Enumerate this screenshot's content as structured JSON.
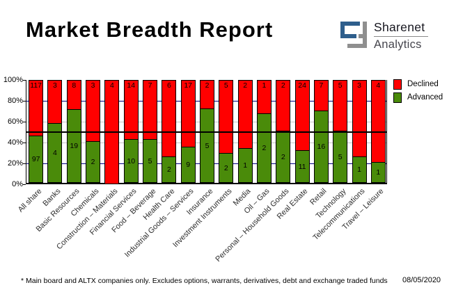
{
  "title": "Market Breadth Report",
  "logo": {
    "name": "Sharenet",
    "sub": "Analytics",
    "blue": "#2e5e8c",
    "gray": "#8f8f8f"
  },
  "legend": {
    "declined_label": "Declined",
    "advanced_label": "Advanced",
    "declined_color": "#ff0000",
    "advanced_color": "#4a8b0a"
  },
  "footer": {
    "note": "* Main board and ALTX companies only. Excludes options, warrants, derivatives, debt and exchange traded funds",
    "date": "08/05/2020"
  },
  "chart_data": {
    "type": "bar",
    "stacked": true,
    "units": "percent_of_total",
    "categories": [
      "All share",
      "Banks",
      "Basic Resources",
      "Chemicals",
      "Construction – Materials",
      "Financial Services",
      "Food – Beverage",
      "Health Care",
      "Industrial Goods – Services",
      "Insurance",
      "Investment Instruments",
      "Media",
      "Oil – Gas",
      "Personal – Household Goods",
      "Real Estate",
      "Retail",
      "Technology",
      "Telecommunications",
      "Travel – Leisure"
    ],
    "series": [
      {
        "name": "Advanced",
        "color": "#4a8b0a",
        "values": [
          97,
          4,
          19,
          2,
          0,
          10,
          5,
          2,
          9,
          5,
          2,
          1,
          2,
          2,
          11,
          16,
          5,
          1,
          1
        ]
      },
      {
        "name": "Declined",
        "color": "#ff0000",
        "values": [
          117,
          3,
          8,
          3,
          4,
          14,
          7,
          6,
          17,
          2,
          5,
          2,
          1,
          2,
          24,
          7,
          5,
          3,
          4
        ]
      }
    ],
    "value_labels": true,
    "ylim": [
      0,
      100
    ],
    "yticks": [
      "100%",
      "80%",
      "60%",
      "40%",
      "20%",
      "0%"
    ],
    "gridlines": [
      {
        "y": 20,
        "color": "#000080"
      },
      {
        "y": 40,
        "color": "#c4c4c4"
      },
      {
        "y": 60,
        "color": "#c4c4c4"
      },
      {
        "y": 80,
        "color": "#000080"
      }
    ],
    "reference_line": {
      "y": 50,
      "color": "#000000"
    },
    "legend_position": "top-right"
  }
}
